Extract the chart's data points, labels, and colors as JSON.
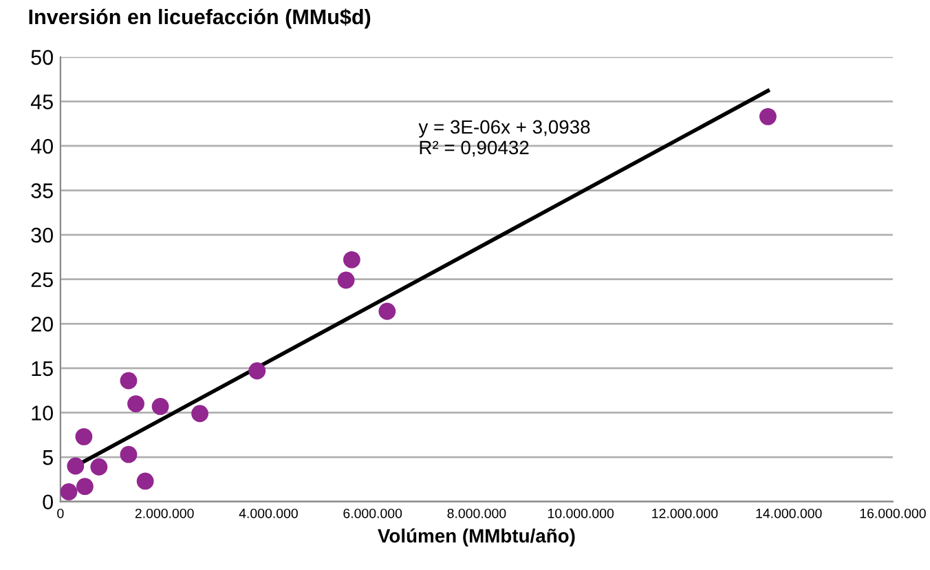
{
  "chart_data": {
    "type": "scatter",
    "title": "Inversión en licuefacción (MMu$d)",
    "xlabel": "Volúmen (MMbtu/año)",
    "xlim": [
      0,
      16000000
    ],
    "ylim": [
      0,
      50
    ],
    "xticks": [
      {
        "value": 0,
        "label": "0"
      },
      {
        "value": 2000000,
        "label": "2.000.000"
      },
      {
        "value": 4000000,
        "label": "4.000.000"
      },
      {
        "value": 6000000,
        "label": "6.000.000"
      },
      {
        "value": 8000000,
        "label": "8.000.000"
      },
      {
        "value": 10000000,
        "label": "10.000.000"
      },
      {
        "value": 12000000,
        "label": "12.000.000"
      },
      {
        "value": 14000000,
        "label": "14.000.000"
      },
      {
        "value": 16000000,
        "label": "16.000.000"
      }
    ],
    "yticks": [
      0,
      5,
      10,
      15,
      20,
      25,
      30,
      35,
      40,
      45,
      50
    ],
    "grid": "y",
    "series": [
      {
        "marker": "circle",
        "color": "#92278f",
        "x": [
          160000,
          290000,
          450000,
          470000,
          740000,
          1310000,
          1310000,
          1450000,
          1630000,
          1920000,
          2680000,
          3780000,
          5490000,
          5600000,
          6280000,
          13600000
        ],
        "values": [
          1.1,
          4.0,
          7.3,
          1.7,
          3.9,
          5.3,
          13.6,
          11.0,
          2.3,
          10.7,
          9.9,
          14.7,
          24.9,
          27.2,
          21.4,
          43.3
        ]
      },
      {
        "type": "line",
        "color": "#000000",
        "x": [
          290000,
          13600000
        ],
        "values": [
          4.0,
          46.2
        ]
      }
    ],
    "annotations": [
      "y = 3E-06x + 3,0938\nR² = 0,90432"
    ]
  }
}
